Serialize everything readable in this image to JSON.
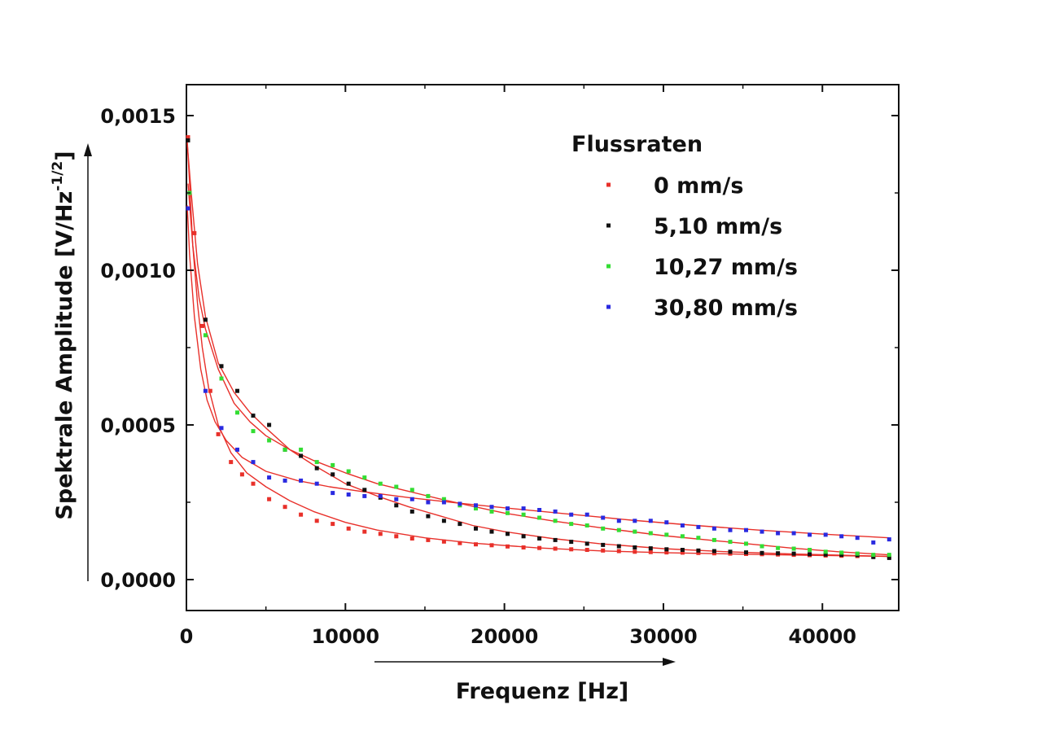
{
  "chart_data": {
    "type": "scatter",
    "title": "",
    "xlabel": "Frequenz [Hz]",
    "ylabel_main": "Spektrale Amplitude [V/Hz",
    "ylabel_sup": "-1/2",
    "ylabel_end": "]",
    "xlim": [
      0,
      44800
    ],
    "ylim": [
      -0.0001,
      0.0016
    ],
    "x_ticks": [
      0,
      10000,
      20000,
      30000,
      40000
    ],
    "x_tick_labels": [
      "0",
      "10000",
      "20000",
      "30000",
      "40000"
    ],
    "y_ticks": [
      0.0,
      0.0005,
      0.001,
      0.0015
    ],
    "y_tick_labels": [
      "0,0000",
      "0,0005",
      "0,0010",
      "0,0015"
    ],
    "grid": false,
    "legend_title": "Flussraten",
    "legend_position": "top-right",
    "fit_line_color": "#e8302a",
    "series": [
      {
        "name": "0 mm/s",
        "color": "#e8302a",
        "x": [
          100,
          500,
          1000,
          1500,
          2000,
          2800,
          3500,
          4200,
          5200,
          6200,
          7200,
          8200,
          9200,
          10200,
          11200,
          12200,
          13200,
          14200,
          15200,
          16200,
          17200,
          18200,
          19200,
          20200,
          21200,
          22200,
          23200,
          24200,
          25200,
          26200,
          27200,
          28200,
          29200,
          30200,
          31200,
          32200,
          33200,
          34200,
          35200,
          36200,
          37200,
          38200,
          39200,
          40200,
          41200,
          42200,
          43200,
          44200
        ],
        "y": [
          0.00143,
          0.00112,
          0.00082,
          0.00061,
          0.00047,
          0.00038,
          0.00034,
          0.00031,
          0.00026,
          0.000235,
          0.00021,
          0.00019,
          0.00018,
          0.000165,
          0.000155,
          0.000148,
          0.00014,
          0.000133,
          0.000128,
          0.000123,
          0.000118,
          0.000114,
          0.000111,
          0.000107,
          0.000104,
          0.000102,
          0.0001,
          9.8e-05,
          9.6e-05,
          9.4e-05,
          9.2e-05,
          9e-05,
          8.9e-05,
          8.8e-05,
          8.7e-05,
          8.6e-05,
          8.5e-05,
          8.4e-05,
          8.3e-05,
          8.2e-05,
          8.1e-05,
          8e-05,
          7.9e-05,
          7.8e-05,
          7.7e-05,
          7.6e-05,
          7.5e-05,
          7.4e-05
        ],
        "fit": [
          [
            50,
            0.00142
          ],
          [
            200,
            0.00128
          ],
          [
            400,
            0.00108
          ],
          [
            700,
            0.00089
          ],
          [
            1000,
            0.00075
          ],
          [
            1400,
            0.00062
          ],
          [
            2000,
            0.0005
          ],
          [
            2800,
            0.00041
          ],
          [
            3800,
            0.000345
          ],
          [
            5000,
            0.0003
          ],
          [
            6500,
            0.000255
          ],
          [
            8000,
            0.00022
          ],
          [
            10000,
            0.000185
          ],
          [
            12000,
            0.00016
          ],
          [
            15000,
            0.000135
          ],
          [
            18000,
            0.000118
          ],
          [
            22000,
            0.000103
          ],
          [
            26000,
            9.3e-05
          ],
          [
            30000,
            8.7e-05
          ],
          [
            35000,
            8.2e-05
          ],
          [
            40000,
            7.8e-05
          ],
          [
            44200,
            7.5e-05
          ]
        ]
      },
      {
        "name": "5,10 mm/s",
        "color": "#111111",
        "x": [
          100,
          1200,
          2200,
          3200,
          4200,
          5200,
          6200,
          7200,
          8200,
          9200,
          10200,
          11200,
          12200,
          13200,
          14200,
          15200,
          16200,
          17200,
          18200,
          19200,
          20200,
          21200,
          22200,
          23200,
          24200,
          25200,
          26200,
          27200,
          28200,
          29200,
          30200,
          31200,
          32200,
          33200,
          34200,
          35200,
          36200,
          37200,
          38200,
          39200,
          40200,
          41200,
          42200,
          43200,
          44200
        ],
        "y": [
          0.00142,
          0.00084,
          0.00069,
          0.00061,
          0.00053,
          0.0005,
          0.00042,
          0.0004,
          0.00036,
          0.00034,
          0.00031,
          0.00029,
          0.000265,
          0.00024,
          0.00022,
          0.000205,
          0.00019,
          0.00018,
          0.000165,
          0.000155,
          0.000148,
          0.00014,
          0.000133,
          0.000128,
          0.000122,
          0.000116,
          0.000112,
          0.000108,
          0.000104,
          0.000101,
          9.8e-05,
          9.6e-05,
          9.4e-05,
          9.2e-05,
          9e-05,
          8.8e-05,
          8.6e-05,
          8.5e-05,
          8.4e-05,
          8.2e-05,
          8.1e-05,
          8e-05,
          7.9e-05,
          7.3e-05,
          7e-05
        ],
        "fit": [
          [
            50,
            0.00141
          ],
          [
            300,
            0.00125
          ],
          [
            700,
            0.00102
          ],
          [
            1200,
            0.00085
          ],
          [
            2000,
            0.0007
          ],
          [
            3000,
            0.000605
          ],
          [
            4000,
            0.00054
          ],
          [
            5000,
            0.00049
          ],
          [
            6500,
            0.00042
          ],
          [
            8000,
            0.00037
          ],
          [
            10000,
            0.00031
          ],
          [
            12000,
            0.00027
          ],
          [
            14000,
            0.000235
          ],
          [
            16000,
            0.000205
          ],
          [
            18000,
            0.000175
          ],
          [
            20000,
            0.000155
          ],
          [
            23000,
            0.000133
          ],
          [
            26000,
            0.000116
          ],
          [
            30000,
            0.0001
          ],
          [
            34000,
            9e-05
          ],
          [
            38000,
            8.3e-05
          ],
          [
            42000,
            7.8e-05
          ],
          [
            44200,
            7.5e-05
          ]
        ]
      },
      {
        "name": "10,27 mm/s",
        "color": "#33dd33",
        "x": [
          200,
          1200,
          2200,
          3200,
          4200,
          5200,
          6200,
          7200,
          8200,
          9200,
          10200,
          11200,
          12200,
          13200,
          14200,
          15200,
          16200,
          17200,
          18200,
          19200,
          20200,
          21200,
          22200,
          23200,
          24200,
          25200,
          26200,
          27200,
          28200,
          29200,
          30200,
          31200,
          32200,
          33200,
          34200,
          35200,
          36200,
          37200,
          38200,
          39200,
          40200,
          41200,
          42200,
          43200,
          44200
        ],
        "y": [
          0.00125,
          0.00079,
          0.00065,
          0.00054,
          0.00048,
          0.00045,
          0.00042,
          0.00042,
          0.00038,
          0.00037,
          0.00035,
          0.00033,
          0.00031,
          0.0003,
          0.00029,
          0.00027,
          0.00026,
          0.00024,
          0.00023,
          0.00022,
          0.000215,
          0.00021,
          0.0002,
          0.00019,
          0.00018,
          0.000175,
          0.000165,
          0.00016,
          0.000155,
          0.00015,
          0.000145,
          0.00014,
          0.000135,
          0.000128,
          0.000122,
          0.000116,
          0.000108,
          0.000102,
          0.0001,
          9.6e-05,
          9e-05,
          8.7e-05,
          8.4e-05,
          8e-05,
          8e-05
        ],
        "fit": [
          [
            100,
            0.00128
          ],
          [
            400,
            0.00108
          ],
          [
            800,
            0.00091
          ],
          [
            1200,
            0.00081
          ],
          [
            2000,
            0.00068
          ],
          [
            3000,
            0.00057
          ],
          [
            4000,
            0.00051
          ],
          [
            5000,
            0.000465
          ],
          [
            6500,
            0.00042
          ],
          [
            8000,
            0.000385
          ],
          [
            10000,
            0.000345
          ],
          [
            12000,
            0.00031
          ],
          [
            14000,
            0.000285
          ],
          [
            16000,
            0.00026
          ],
          [
            18000,
            0.000237
          ],
          [
            20000,
            0.000215
          ],
          [
            23000,
            0.00019
          ],
          [
            26000,
            0.000168
          ],
          [
            30000,
            0.000142
          ],
          [
            34000,
            0.000122
          ],
          [
            38000,
            0.000102
          ],
          [
            41000,
            9e-05
          ],
          [
            44200,
            8e-05
          ]
        ]
      },
      {
        "name": "30,80 mm/s",
        "color": "#2a2ae0",
        "x": [
          100,
          1200,
          2200,
          3200,
          4200,
          5200,
          6200,
          7200,
          8200,
          9200,
          10200,
          11200,
          12200,
          13200,
          14200,
          15200,
          16200,
          17200,
          18200,
          19200,
          20200,
          21200,
          22200,
          23200,
          24200,
          25200,
          26200,
          27200,
          28200,
          29200,
          30200,
          31200,
          32200,
          33200,
          34200,
          35200,
          36200,
          37200,
          38200,
          39200,
          40200,
          41200,
          42200,
          43200,
          44200
        ],
        "y": [
          0.0012,
          0.00061,
          0.00049,
          0.00042,
          0.00038,
          0.00033,
          0.00032,
          0.00032,
          0.00031,
          0.00028,
          0.000275,
          0.00027,
          0.00027,
          0.00026,
          0.00026,
          0.00025,
          0.00025,
          0.000245,
          0.00024,
          0.000235,
          0.00023,
          0.00023,
          0.000225,
          0.00022,
          0.00021,
          0.00021,
          0.0002,
          0.00019,
          0.00019,
          0.00019,
          0.000185,
          0.000175,
          0.00017,
          0.000165,
          0.00016,
          0.00016,
          0.000155,
          0.00015,
          0.00015,
          0.000145,
          0.000145,
          0.00014,
          0.000135,
          0.00012,
          0.00013
        ],
        "fit": [
          [
            50,
            0.00121
          ],
          [
            200,
            0.00105
          ],
          [
            500,
            0.00085
          ],
          [
            900,
            0.00068
          ],
          [
            1300,
            0.00058
          ],
          [
            1800,
            0.00051
          ],
          [
            2500,
            0.00045
          ],
          [
            3500,
            0.000395
          ],
          [
            5000,
            0.00035
          ],
          [
            7000,
            0.00032
          ],
          [
            9000,
            0.0003
          ],
          [
            11000,
            0.000285
          ],
          [
            14000,
            0.000265
          ],
          [
            17000,
            0.000248
          ],
          [
            20000,
            0.000232
          ],
          [
            24000,
            0.000212
          ],
          [
            28000,
            0.000192
          ],
          [
            32000,
            0.000175
          ],
          [
            36000,
            0.00016
          ],
          [
            40000,
            0.000147
          ],
          [
            44200,
            0.000135
          ]
        ]
      }
    ]
  }
}
